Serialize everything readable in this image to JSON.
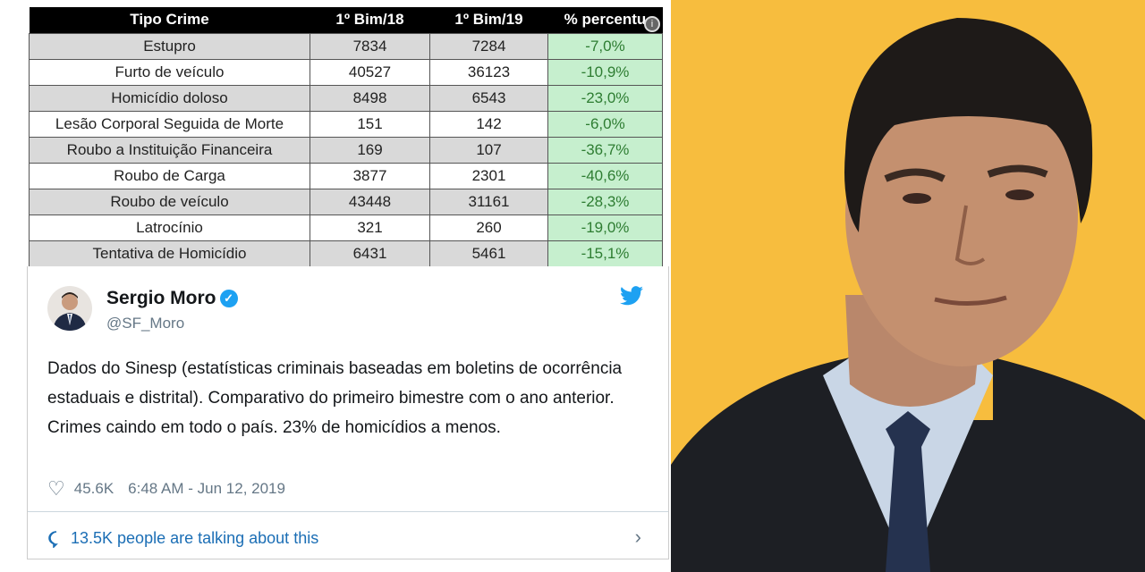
{
  "table": {
    "headers": [
      "Tipo Crime",
      "1º Bim/18",
      "1º Bim/19",
      "% percentu"
    ],
    "rows": [
      [
        "Estupro",
        "7834",
        "7284",
        "-7,0%"
      ],
      [
        "Furto de veículo",
        "40527",
        "36123",
        "-10,9%"
      ],
      [
        "Homicídio doloso",
        "8498",
        "6543",
        "-23,0%"
      ],
      [
        "Lesão Corporal Seguida de Morte",
        "151",
        "142",
        "-6,0%"
      ],
      [
        "Roubo a Instituição Financeira",
        "169",
        "107",
        "-36,7%"
      ],
      [
        "Roubo de Carga",
        "3877",
        "2301",
        "-40,6%"
      ],
      [
        "Roubo de veículo",
        "43448",
        "31161",
        "-28,3%"
      ],
      [
        "Latrocínio",
        "321",
        "260",
        "-19,0%"
      ],
      [
        "Tentativa de Homicídio",
        "6431",
        "5461",
        "-15,1%"
      ]
    ],
    "highlight_color": "#c6efce"
  },
  "tweet": {
    "name": "Sergio Moro",
    "handle": "@SF_Moro",
    "text": "Dados do Sinesp (estatísticas criminais baseadas em boletins de ocorrência estaduais e distrital). Comparativo do primeiro bimestre com o ano anterior. Crimes caindo em todo o país. 23% de homicídios a menos.",
    "likes": "45.6K",
    "timestamp": "6:48 AM - Jun 12, 2019",
    "talking": "13.5K people are talking about this",
    "accent": "#1da1f2"
  },
  "photo": {
    "background": "#f7bd3e"
  }
}
